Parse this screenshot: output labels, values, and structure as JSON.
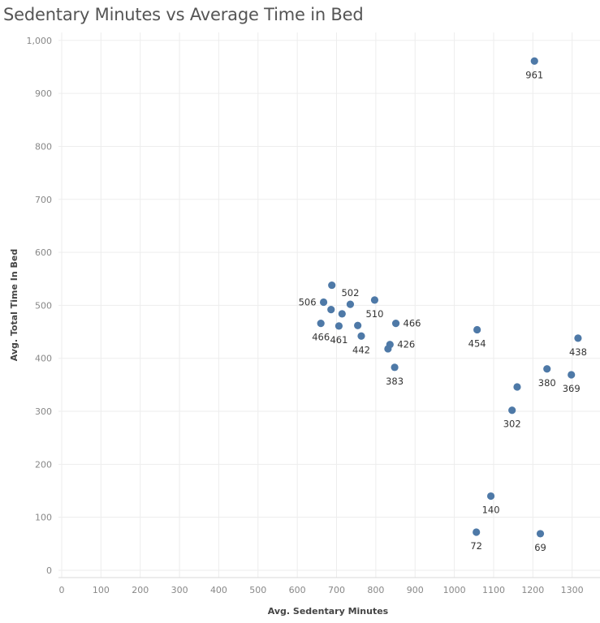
{
  "chart_data": {
    "type": "scatter",
    "title": "Sedentary Minutes vs Average Time in Bed",
    "xlabel": "Avg. Sedentary Minutes",
    "ylabel": "Avg. Total Time In Bed",
    "xlim": [
      0,
      1390
    ],
    "ylim": [
      -15,
      1030
    ],
    "xticks": [
      0,
      100,
      200,
      300,
      400,
      500,
      600,
      700,
      800,
      900,
      1000,
      1100,
      1200,
      1300
    ],
    "yticks": [
      0,
      100,
      200,
      300,
      400,
      500,
      600,
      700,
      800,
      900,
      1000
    ],
    "ytick_labels": [
      "0",
      "100",
      "200",
      "300",
      "400",
      "500",
      "600",
      "700",
      "800",
      "900",
      "1,000"
    ],
    "grid": true,
    "point_color": "#4e79a7",
    "points": [
      {
        "x": 1204,
        "y": 961,
        "label": "961",
        "label_pos": "below"
      },
      {
        "x": 688,
        "y": 538,
        "label": "",
        "label_pos": "none"
      },
      {
        "x": 735,
        "y": 502,
        "label": "502",
        "label_pos": "above"
      },
      {
        "x": 667,
        "y": 506,
        "label": "506",
        "label_pos": "left"
      },
      {
        "x": 797,
        "y": 510,
        "label": "510",
        "label_pos": "below"
      },
      {
        "x": 686,
        "y": 492,
        "label": "",
        "label_pos": "none"
      },
      {
        "x": 714,
        "y": 484,
        "label": "",
        "label_pos": "none"
      },
      {
        "x": 660,
        "y": 466,
        "label": "466",
        "label_pos": "below"
      },
      {
        "x": 706,
        "y": 461,
        "label": "461",
        "label_pos": "below"
      },
      {
        "x": 754,
        "y": 462,
        "label": "",
        "label_pos": "none"
      },
      {
        "x": 763,
        "y": 442,
        "label": "442",
        "label_pos": "below"
      },
      {
        "x": 851,
        "y": 466,
        "label": "466",
        "label_pos": "right"
      },
      {
        "x": 836,
        "y": 426,
        "label": "426",
        "label_pos": "right"
      },
      {
        "x": 831,
        "y": 418,
        "label": "",
        "label_pos": "none"
      },
      {
        "x": 848,
        "y": 383,
        "label": "383",
        "label_pos": "below"
      },
      {
        "x": 1058,
        "y": 454,
        "label": "454",
        "label_pos": "below"
      },
      {
        "x": 1315,
        "y": 438,
        "label": "438",
        "label_pos": "below"
      },
      {
        "x": 1236,
        "y": 380,
        "label": "380",
        "label_pos": "below"
      },
      {
        "x": 1298,
        "y": 369,
        "label": "369",
        "label_pos": "below"
      },
      {
        "x": 1160,
        "y": 346,
        "label": "",
        "label_pos": "none"
      },
      {
        "x": 1147,
        "y": 302,
        "label": "302",
        "label_pos": "below"
      },
      {
        "x": 1093,
        "y": 140,
        "label": "140",
        "label_pos": "below"
      },
      {
        "x": 1056,
        "y": 72,
        "label": "72",
        "label_pos": "below"
      },
      {
        "x": 1219,
        "y": 69,
        "label": "69",
        "label_pos": "below"
      }
    ]
  }
}
